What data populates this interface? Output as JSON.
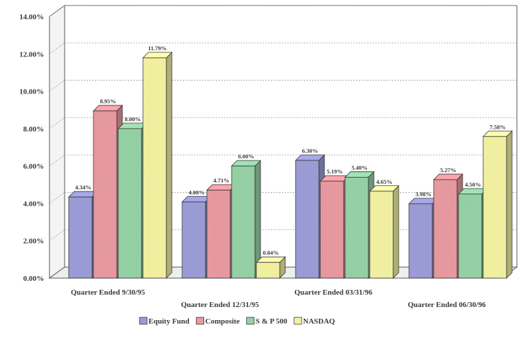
{
  "chart_data": {
    "type": "bar",
    "title": "",
    "xlabel": "",
    "ylabel": "",
    "ylim": [
      0,
      14
    ],
    "y_ticks": [
      "0.00%",
      "2.00%",
      "4.00%",
      "6.00%",
      "8.00%",
      "10.00%",
      "12.00%",
      "14.00%"
    ],
    "y_tick_values": [
      0,
      2,
      4,
      6,
      8,
      10,
      12,
      14
    ],
    "grid": true,
    "legend_position": "bottom",
    "categories": [
      "Quarter Ended 9/30/95",
      "Quarter Ended 12/31/95",
      "Quarter Ended 03/31/96",
      "Quarter Ended 06/30/96"
    ],
    "series": [
      {
        "name": "Equity Fund",
        "color": "#9c9cd8",
        "values": [
          4.34,
          4.08,
          6.3,
          3.98
        ],
        "labels": [
          "4.34%",
          "4.08%",
          "6.30%",
          "3.98%"
        ]
      },
      {
        "name": "Composite",
        "color": "#e89aa0",
        "values": [
          8.95,
          4.71,
          5.19,
          5.27
        ],
        "labels": [
          "8.95%",
          "4.71%",
          "5.19%",
          "5.27%"
        ]
      },
      {
        "name": "S & P 500",
        "color": "#96d2a6",
        "values": [
          8.0,
          6.0,
          5.4,
          4.5
        ],
        "labels": [
          "8.00%",
          "6.00%",
          "5.40%",
          "4.50%"
        ]
      },
      {
        "name": "NASDAQ",
        "color": "#f3f2a2",
        "values": [
          11.79,
          0.84,
          4.65,
          7.58
        ],
        "labels": [
          "11.79%",
          "0.84%",
          "4.65%",
          "7.58%"
        ]
      }
    ]
  }
}
